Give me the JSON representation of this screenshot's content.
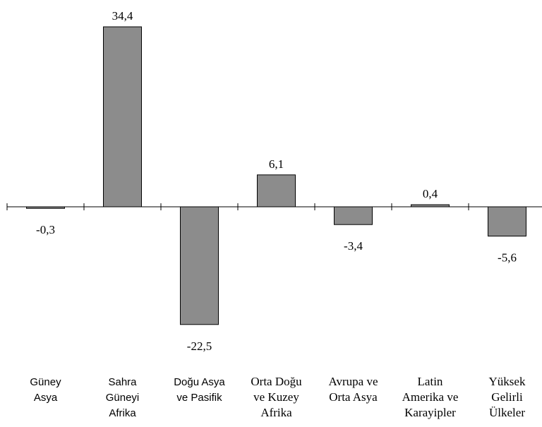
{
  "chart_data": {
    "type": "bar",
    "categories": [
      {
        "lines": [
          "Güney",
          "Asya"
        ],
        "font": "sans"
      },
      {
        "lines": [
          "Sahra",
          "Güneyi",
          "Afrika"
        ],
        "font": "sans"
      },
      {
        "lines": [
          "Doğu Asya",
          "ve Pasifik"
        ],
        "font": "sans"
      },
      {
        "lines": [
          "Orta Doğu",
          "ve Kuzey",
          "Afrika"
        ],
        "font": "serif"
      },
      {
        "lines": [
          "Avrupa ve",
          "Orta Asya"
        ],
        "font": "serif"
      },
      {
        "lines": [
          "Latin",
          "Amerika ve",
          "Karayipler"
        ],
        "font": "serif"
      },
      {
        "lines": [
          "Yüksek",
          "Gelirli",
          "Ülkeler"
        ],
        "font": "serif"
      }
    ],
    "values": [
      -0.3,
      34.4,
      -22.5,
      6.1,
      -3.4,
      0.4,
      -5.6
    ],
    "value_labels": [
      "-0,3",
      "34,4",
      "-22,5",
      "6,1",
      "-3,4",
      "0,4",
      "-5,6"
    ],
    "bar_color": "#8c8c8c",
    "bar_outline": "#000000",
    "title": "",
    "xlabel": "",
    "ylabel": "",
    "grid": false,
    "legend": "none"
  }
}
